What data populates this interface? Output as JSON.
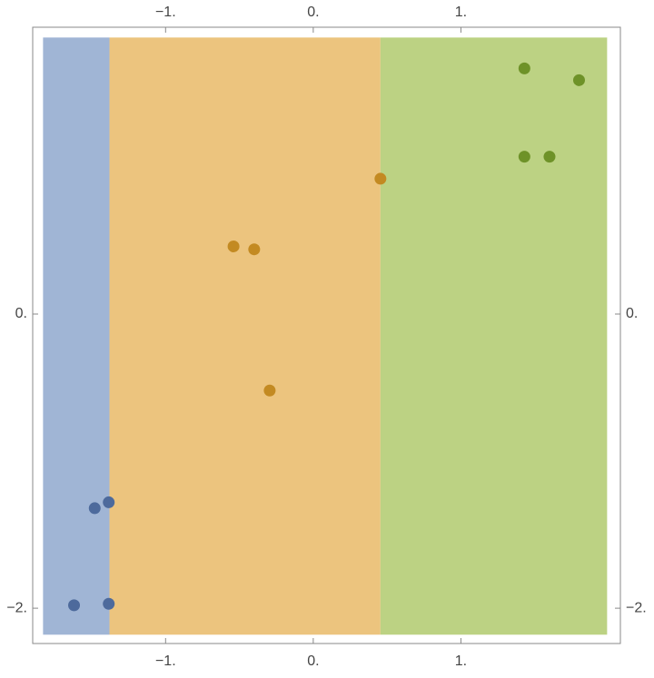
{
  "chart_data": {
    "type": "scatter",
    "xlim": [
      -1.9,
      2.08
    ],
    "ylim": [
      -2.24,
      1.95
    ],
    "xticks": [
      {
        "value": -1,
        "label": "−1."
      },
      {
        "value": 0,
        "label": "0."
      },
      {
        "value": 1,
        "label": "1."
      }
    ],
    "yticks": [
      {
        "value": 0,
        "label": "0."
      },
      {
        "value": -2,
        "label": "−2."
      }
    ],
    "regions": {
      "edges": [
        -1.83,
        -1.38,
        0.455,
        1.99
      ],
      "ylim": [
        -2.18,
        1.88
      ],
      "colors": [
        "#a0b5d5",
        "#ecc47e",
        "#bcd283"
      ]
    },
    "series": [
      {
        "color": "#4d6a9c",
        "x": [
          -1.48,
          -1.385,
          -1.62,
          -1.385
        ],
        "values": [
          -1.32,
          -1.28,
          -1.98,
          -1.97
        ]
      },
      {
        "color": "#c38a22",
        "x": [
          -0.54,
          -0.4,
          -0.295,
          0.455
        ],
        "values": [
          0.46,
          0.44,
          -0.52,
          0.92
        ]
      },
      {
        "color": "#6e9228",
        "x": [
          1.43,
          1.8,
          1.43,
          1.6
        ],
        "values": [
          1.67,
          1.59,
          1.07,
          1.07
        ]
      }
    ]
  }
}
